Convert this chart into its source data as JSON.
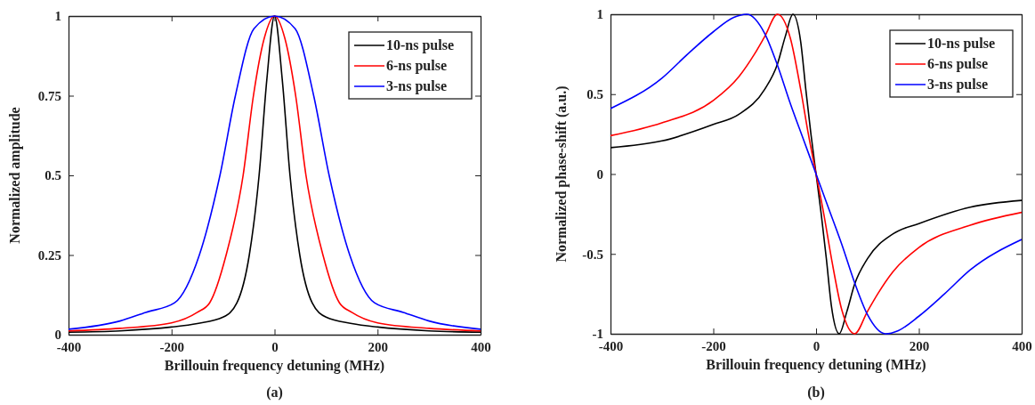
{
  "chart_data": [
    {
      "type": "line",
      "xlabel": "Brillouin frequency detuning (MHz)",
      "ylabel": "Normalized amplitude",
      "annotations": [
        "(a)"
      ],
      "xlim": [
        -400,
        400
      ],
      "xticks": [
        -400,
        -200,
        0,
        200,
        400
      ],
      "ylim": [
        0,
        1
      ],
      "yticks": [
        0,
        0.25,
        0.5,
        0.75,
        1
      ],
      "legend": "top right",
      "series": [
        {
          "name": "10-ns pulse",
          "color": "#000000",
          "x": [
            -400,
            -300,
            -200,
            -150,
            -100,
            -73,
            -49,
            -30,
            -15,
            0,
            15,
            30,
            49,
            73,
            100,
            150,
            200,
            300,
            400
          ],
          "values": [
            0.008,
            0.012,
            0.024,
            0.035,
            0.055,
            0.1,
            0.25,
            0.5,
            0.8,
            1,
            0.8,
            0.5,
            0.25,
            0.1,
            0.055,
            0.035,
            0.024,
            0.012,
            0.008
          ]
        },
        {
          "name": "6-ns pulse",
          "color": "#ff0000",
          "x": [
            -400,
            -300,
            -200,
            -150,
            -126,
            -94,
            -61,
            -41,
            -20,
            0,
            20,
            41,
            61,
            94,
            126,
            150,
            200,
            300,
            400
          ],
          "values": [
            0.012,
            0.02,
            0.037,
            0.07,
            0.1,
            0.25,
            0.5,
            0.75,
            0.93,
            1,
            0.93,
            0.75,
            0.5,
            0.25,
            0.1,
            0.07,
            0.037,
            0.02,
            0.012
          ]
        },
        {
          "name": "3-ns pulse",
          "color": "#0000ff",
          "x": [
            -400,
            -300,
            -250,
            -194,
            -146,
            -106,
            -76,
            -40,
            0,
            40,
            76,
            106,
            146,
            194,
            250,
            300,
            400
          ],
          "values": [
            0.017,
            0.043,
            0.07,
            0.1,
            0.25,
            0.5,
            0.75,
            0.96,
            1,
            0.96,
            0.75,
            0.5,
            0.25,
            0.1,
            0.07,
            0.043,
            0.017
          ]
        }
      ]
    },
    {
      "type": "line",
      "xlabel": "Brillouin frequency detuning (MHz)",
      "ylabel": "Normalized phase-shift (a.u.)",
      "annotations": [
        "(b)"
      ],
      "xlim": [
        -400,
        400
      ],
      "xticks": [
        -400,
        -200,
        0,
        200,
        400
      ],
      "ylim": [
        -1,
        1
      ],
      "yticks": [
        -1,
        -0.5,
        0,
        0.5,
        1
      ],
      "legend": "top right",
      "series": [
        {
          "name": "10-ns pulse",
          "color": "#000000",
          "x": [
            -400,
            -300,
            -200,
            -150,
            -100,
            -75,
            -60,
            -45,
            -30,
            -20,
            -10,
            0,
            10,
            20,
            30,
            45,
            60,
            75,
            100,
            150,
            200,
            300,
            400
          ],
          "values": [
            0.165,
            0.207,
            0.31,
            0.374,
            0.53,
            0.69,
            0.86,
            1,
            0.83,
            0.53,
            0.25,
            0,
            -0.25,
            -0.53,
            -0.83,
            -1,
            -0.86,
            -0.69,
            -0.53,
            -0.374,
            -0.31,
            -0.207,
            -0.165
          ]
        },
        {
          "name": "6-ns pulse",
          "color": "#ff0000",
          "x": [
            -400,
            -300,
            -200,
            -150,
            -120,
            -100,
            -75,
            -50,
            -30,
            -15,
            0,
            15,
            30,
            50,
            75,
            100,
            120,
            150,
            200,
            300,
            400
          ],
          "values": [
            0.24,
            0.32,
            0.46,
            0.61,
            0.75,
            0.86,
            1,
            0.85,
            0.53,
            0.25,
            0,
            -0.25,
            -0.53,
            -0.85,
            -1,
            -0.86,
            -0.75,
            -0.61,
            -0.46,
            -0.32,
            -0.24
          ]
        },
        {
          "name": "3-ns pulse",
          "color": "#0000ff",
          "x": [
            -400,
            -300,
            -250,
            -200,
            -160,
            -135,
            -100,
            -75,
            -50,
            -25,
            0,
            25,
            50,
            75,
            100,
            135,
            160,
            200,
            250,
            300,
            400
          ],
          "values": [
            0.41,
            0.6,
            0.75,
            0.89,
            0.98,
            1,
            0.88,
            0.68,
            0.44,
            0.22,
            0,
            -0.22,
            -0.44,
            -0.68,
            -0.88,
            -1,
            -0.98,
            -0.89,
            -0.75,
            -0.6,
            -0.41
          ]
        }
      ]
    }
  ]
}
